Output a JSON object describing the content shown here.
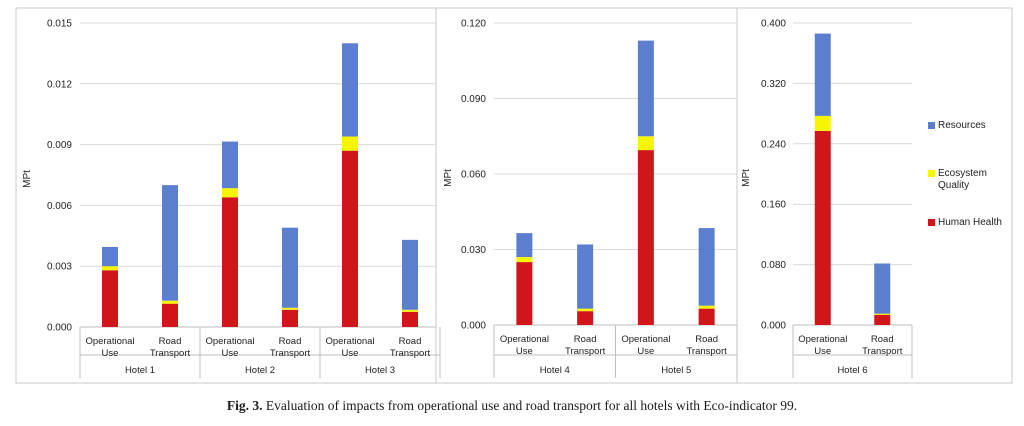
{
  "caption": {
    "label": "Fig. 3.",
    "text": "Evaluation of impacts from operational use and road transport for all hotels with Eco-indicator 99."
  },
  "colors": {
    "resources": "#5b7fce",
    "ecosystem": "#f7f500",
    "human": "#d0161b",
    "grid": "#d9d9d9",
    "axis": "#bfbfbf",
    "frame": "#c8c8c8",
    "text": "#222222"
  },
  "legend": [
    {
      "name": "Resources",
      "color": "#5b7fce"
    },
    {
      "name": "Ecosystem Quality",
      "color": "#f7f500"
    },
    {
      "name": "Human Health",
      "color": "#d0161b"
    }
  ],
  "chart_data": [
    {
      "type": "bar",
      "stacked": true,
      "ylabel": "MPt",
      "ylim": [
        0,
        0.015
      ],
      "yticks": [
        "0.000",
        "0.003",
        "0.006",
        "0.009",
        "0.012",
        "0.015"
      ],
      "groups": [
        "Hotel 1",
        "Hotel 2",
        "Hotel 3"
      ],
      "categories": [
        "Operational Use",
        "Road Transport"
      ],
      "series": [
        {
          "name": "Human Health",
          "values": [
            [
              0.0028,
              0.00115
            ],
            [
              0.0064,
              0.00085
            ],
            [
              0.0087,
              0.00075
            ]
          ]
        },
        {
          "name": "Ecosystem Quality",
          "values": [
            [
              0.0002,
              0.00015
            ],
            [
              0.00045,
              0.0001
            ],
            [
              0.0007,
              0.0001
            ]
          ]
        },
        {
          "name": "Resources",
          "values": [
            [
              0.00095,
              0.0057
            ],
            [
              0.0023,
              0.00395
            ],
            [
              0.0046,
              0.00345
            ]
          ]
        }
      ],
      "grid": true
    },
    {
      "type": "bar",
      "stacked": true,
      "ylabel": "MPt",
      "ylim": [
        0,
        0.12
      ],
      "yticks": [
        "0.000",
        "0.030",
        "0.060",
        "0.090",
        "0.120"
      ],
      "groups": [
        "Hotel 4",
        "Hotel 5"
      ],
      "categories": [
        "Operational Use",
        "Road Transport"
      ],
      "series": [
        {
          "name": "Human Health",
          "values": [
            [
              0.025,
              0.0055
            ],
            [
              0.0695,
              0.0065
            ]
          ]
        },
        {
          "name": "Ecosystem Quality",
          "values": [
            [
              0.002,
              0.001
            ],
            [
              0.0055,
              0.0012
            ]
          ]
        },
        {
          "name": "Resources",
          "values": [
            [
              0.0095,
              0.0255
            ],
            [
              0.038,
              0.0308
            ]
          ]
        }
      ],
      "grid": true
    },
    {
      "type": "bar",
      "stacked": true,
      "ylabel": "MPt",
      "ylim": [
        0,
        0.4
      ],
      "yticks": [
        "0.000",
        "0.080",
        "0.160",
        "0.240",
        "0.320",
        "0.400"
      ],
      "groups": [
        "Hotel 6"
      ],
      "categories": [
        "Operational Use",
        "Road Transport"
      ],
      "series": [
        {
          "name": "Human Health",
          "values": [
            [
              0.257,
              0.0135
            ]
          ]
        },
        {
          "name": "Ecosystem Quality",
          "values": [
            [
              0.02,
              0.0015
            ]
          ]
        },
        {
          "name": "Resources",
          "values": [
            [
              0.109,
              0.0665
            ]
          ]
        }
      ],
      "grid": true,
      "legend": "right"
    }
  ]
}
